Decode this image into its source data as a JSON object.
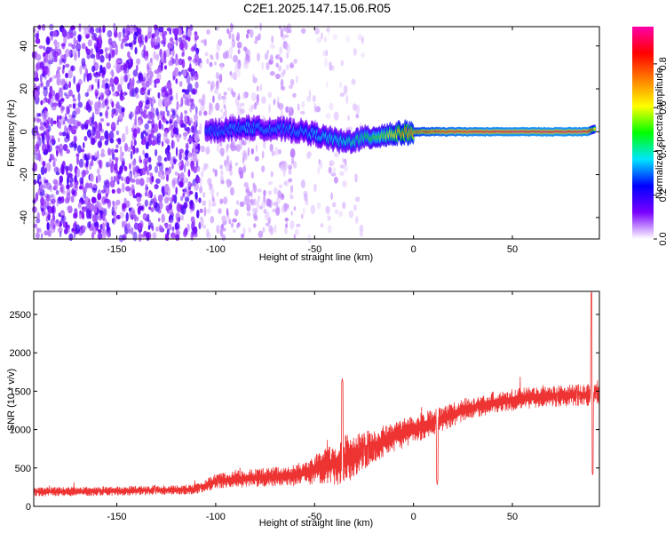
{
  "title": "C2E1.2025.147.15.06.R05",
  "chart_data": [
    {
      "type": "heatmap",
      "xlabel": "Height of straight line (km)",
      "ylabel": "Frequency (Hz)",
      "xlim": [
        -192,
        94
      ],
      "ylim": [
        -50,
        49
      ],
      "xticks": [
        -150,
        -100,
        -50,
        0,
        50
      ],
      "yticks": [
        -40,
        -20,
        0,
        20,
        40
      ],
      "colorbar": {
        "label": "Normalized spectral amplitude",
        "range": [
          0,
          0.97
        ],
        "ticks": [
          "0.0",
          "0.2",
          "0.4",
          "0.6",
          "0.8"
        ],
        "colormap": [
          "#ffffff",
          "#7a00ff",
          "#0000ff",
          "#00e5ff",
          "#00ff00",
          "#ffff00",
          "#ff8000",
          "#ff0000",
          "#ff00aa"
        ]
      },
      "ridge": [
        {
          "x": -105,
          "y": 0.0,
          "amp": 0.3
        },
        {
          "x": -95,
          "y": 1.0,
          "amp": 0.32
        },
        {
          "x": -85,
          "y": 2.0,
          "amp": 0.34
        },
        {
          "x": -75,
          "y": 1.5,
          "amp": 0.32
        },
        {
          "x": -65,
          "y": 1.0,
          "amp": 0.32
        },
        {
          "x": -55,
          "y": 0.0,
          "amp": 0.34
        },
        {
          "x": -45,
          "y": -2.5,
          "amp": 0.38
        },
        {
          "x": -35,
          "y": -5.0,
          "amp": 0.4
        },
        {
          "x": -25,
          "y": -3.0,
          "amp": 0.45
        },
        {
          "x": -15,
          "y": -1.5,
          "amp": 0.55
        },
        {
          "x": -5,
          "y": -0.5,
          "amp": 0.7
        },
        {
          "x": 5,
          "y": 0.0,
          "amp": 0.8
        },
        {
          "x": 15,
          "y": 0.0,
          "amp": 0.85
        },
        {
          "x": 30,
          "y": 0.0,
          "amp": 0.88
        },
        {
          "x": 50,
          "y": 0.0,
          "amp": 0.9
        },
        {
          "x": 70,
          "y": 0.0,
          "amp": 0.9
        },
        {
          "x": 88,
          "y": 0.0,
          "amp": 0.9
        },
        {
          "x": 92,
          "y": 1.5,
          "amp": 0.6
        }
      ],
      "background_noise": [
        {
          "x_range": [
            -192,
            -108
          ],
          "density": "high",
          "amp": 0.15
        },
        {
          "x_range": [
            -108,
            -60
          ],
          "density": "medium",
          "amp": 0.06
        },
        {
          "x_range": [
            -60,
            -25
          ],
          "density": "low",
          "amp": 0.04
        },
        {
          "x_range": [
            -25,
            94
          ],
          "density": "none",
          "amp": 0.0
        }
      ]
    },
    {
      "type": "line",
      "xlabel": "Height of straight line (km)",
      "ylabel": "SNR (10 * v/v)",
      "xlim": [
        -192,
        94
      ],
      "ylim": [
        0,
        2800
      ],
      "xticks": [
        -150,
        -100,
        -50,
        0,
        50
      ],
      "yticks": [
        0,
        500,
        1000,
        1500,
        2000,
        2500
      ],
      "series": [
        {
          "color": "#ee3333",
          "points": [
            {
              "x": -190,
              "mean": 190,
              "spread": 110
            },
            {
              "x": -150,
              "mean": 200,
              "spread": 120
            },
            {
              "x": -110,
              "mean": 220,
              "spread": 120
            },
            {
              "x": -100,
              "mean": 330,
              "spread": 200
            },
            {
              "x": -80,
              "mean": 370,
              "spread": 230
            },
            {
              "x": -60,
              "mean": 400,
              "spread": 280
            },
            {
              "x": -45,
              "mean": 520,
              "spread": 450
            },
            {
              "x": -35,
              "mean": 600,
              "spread": 650
            },
            {
              "x": -25,
              "mean": 720,
              "spread": 500
            },
            {
              "x": -15,
              "mean": 850,
              "spread": 400
            },
            {
              "x": -5,
              "mean": 950,
              "spread": 380
            },
            {
              "x": 5,
              "mean": 1050,
              "spread": 350
            },
            {
              "x": 15,
              "mean": 1150,
              "spread": 330
            },
            {
              "x": 25,
              "mean": 1250,
              "spread": 300
            },
            {
              "x": 40,
              "mean": 1350,
              "spread": 280
            },
            {
              "x": 60,
              "mean": 1420,
              "spread": 280
            },
            {
              "x": 85,
              "mean": 1450,
              "spread": 280
            },
            {
              "x": 94,
              "mean": 1450,
              "spread": 280
            }
          ],
          "features": [
            {
              "x": -36,
              "peak": 1670
            },
            {
              "x": 12,
              "dip": 280
            },
            {
              "x": 90,
              "peak": 2800
            },
            {
              "x": 90.6,
              "dip": 400
            }
          ]
        }
      ]
    }
  ]
}
